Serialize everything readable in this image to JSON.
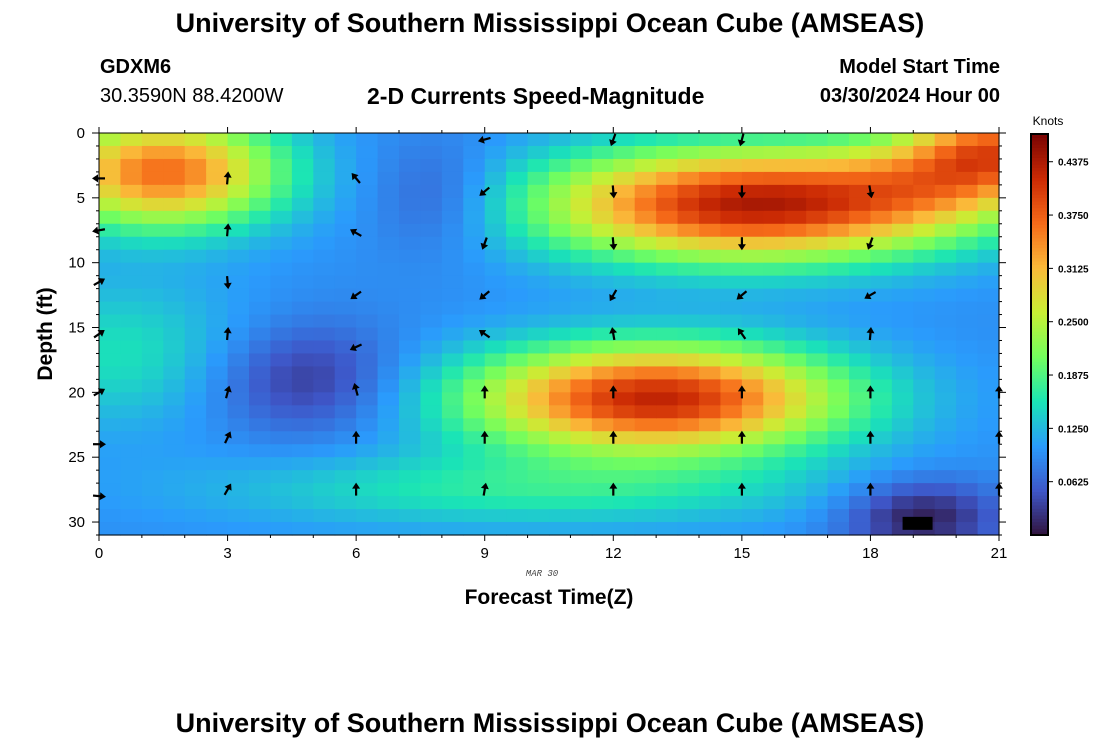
{
  "header": {
    "title": "University of Southern Mississippi Ocean Cube (AMSEAS)",
    "station": "GDXM6",
    "coords": "30.3590N  88.4200W",
    "subtitle": "2-D Currents Speed-Magnitude",
    "start_label": "Model Start Time",
    "start_value": "03/30/2024 Hour 00"
  },
  "footer": {
    "title": "University of Southern Mississippi Ocean Cube (AMSEAS)"
  },
  "chart_data": {
    "type": "heatmap",
    "title": "2-D Currents Speed-Magnitude",
    "xlabel": "Forecast Time(Z)",
    "ylabel": "Depth (ft)",
    "date_label": "MAR 30",
    "xlim": [
      0,
      21
    ],
    "ylim": [
      0,
      31
    ],
    "y_inverted": true,
    "x_ticks": [
      0,
      3,
      6,
      9,
      12,
      15,
      18,
      21
    ],
    "y_ticks": [
      0,
      5,
      10,
      15,
      20,
      25,
      30
    ],
    "colorbar": {
      "label": "Knots",
      "min": 0.0,
      "max": 0.47,
      "ticks": [
        "0.0625",
        "0.1250",
        "0.1875",
        "0.2500",
        "0.3125",
        "0.3750",
        "0.4375"
      ],
      "colors": [
        "#30123b",
        "#3e56c8",
        "#2a9bfc",
        "#1ae4b6",
        "#72fe5e",
        "#c8ef34",
        "#faba39",
        "#f66b19",
        "#cb2a04",
        "#7a0403"
      ]
    },
    "features": [
      {
        "name": "upper-core",
        "t": 15.2,
        "depth": 5.5,
        "sx": 3.4,
        "sy": 3.0,
        "amp": 0.34
      },
      {
        "name": "upper-core-tail",
        "t": 19.5,
        "depth": 3.5,
        "sx": 1.8,
        "sy": 2.6,
        "amp": 0.1
      },
      {
        "name": "surface-left",
        "t": 1.5,
        "depth": 3.0,
        "sx": 1.9,
        "sy": 3.0,
        "amp": 0.27
      },
      {
        "name": "surface-right",
        "t": 21.0,
        "depth": 1.0,
        "sx": 1.4,
        "sy": 2.5,
        "amp": 0.22
      },
      {
        "name": "mid-core",
        "t": 13.0,
        "depth": 20.5,
        "sx": 3.0,
        "sy": 2.9,
        "amp": 0.33
      },
      {
        "name": "left-midband",
        "t": 0.5,
        "depth": 17.0,
        "sx": 2.2,
        "sy": 4.0,
        "amp": 0.06
      },
      {
        "name": "bottom-band",
        "t": 10.0,
        "depth": 27.5,
        "sx": 5.0,
        "sy": 2.0,
        "amp": 0.07
      },
      {
        "name": "slow-zone-a",
        "t": 4.8,
        "depth": 19.0,
        "sx": 1.6,
        "sy": 3.0,
        "amp": -0.07
      },
      {
        "name": "slow-zone-b",
        "t": 8.0,
        "depth": 5.0,
        "sx": 1.2,
        "sy": 3.0,
        "amp": -0.05
      },
      {
        "name": "slow-zone-c",
        "t": 19.2,
        "depth": 29.5,
        "sx": 1.3,
        "sy": 2.0,
        "amp": -0.09
      }
    ],
    "base_speed": 0.095,
    "arrows": [
      {
        "t": 0,
        "depth": 3.5,
        "angle": -90
      },
      {
        "t": 0,
        "depth": 7.5,
        "angle": -100
      },
      {
        "t": 0,
        "depth": 11.5,
        "angle": 60
      },
      {
        "t": 0,
        "depth": 15.5,
        "angle": 55
      },
      {
        "t": 0,
        "depth": 20,
        "angle": 60
      },
      {
        "t": 0,
        "depth": 24,
        "angle": 90
      },
      {
        "t": 0,
        "depth": 28,
        "angle": 95
      },
      {
        "t": 3,
        "depth": 3.5,
        "angle": 5
      },
      {
        "t": 3,
        "depth": 7.5,
        "angle": 5
      },
      {
        "t": 3,
        "depth": 11.5,
        "angle": 175
      },
      {
        "t": 3,
        "depth": 15.5,
        "angle": 5
      },
      {
        "t": 3,
        "depth": 20,
        "angle": 15
      },
      {
        "t": 3,
        "depth": 23.5,
        "angle": 25
      },
      {
        "t": 3,
        "depth": 27.5,
        "angle": 30
      },
      {
        "t": 6,
        "depth": 3.5,
        "angle": -40
      },
      {
        "t": 6,
        "depth": 7.7,
        "angle": -60
      },
      {
        "t": 6,
        "depth": 12.5,
        "angle": -125
      },
      {
        "t": 6,
        "depth": 16.5,
        "angle": -115
      },
      {
        "t": 6,
        "depth": 19.8,
        "angle": -15
      },
      {
        "t": 6,
        "depth": 23.5,
        "angle": 0
      },
      {
        "t": 6,
        "depth": 27.5,
        "angle": 0
      },
      {
        "t": 9,
        "depth": 0.5,
        "angle": -105
      },
      {
        "t": 9,
        "depth": 4.5,
        "angle": -130
      },
      {
        "t": 9,
        "depth": 8.5,
        "angle": -160
      },
      {
        "t": 9,
        "depth": 12.5,
        "angle": -130
      },
      {
        "t": 9,
        "depth": 15.5,
        "angle": -55
      },
      {
        "t": 9,
        "depth": 20,
        "angle": 0
      },
      {
        "t": 9,
        "depth": 23.5,
        "angle": 0
      },
      {
        "t": 9,
        "depth": 27.5,
        "angle": 10
      },
      {
        "t": 12,
        "depth": 0.5,
        "angle": -160
      },
      {
        "t": 12,
        "depth": 4.5,
        "angle": 175
      },
      {
        "t": 12,
        "depth": 8.5,
        "angle": 175
      },
      {
        "t": 12,
        "depth": 12.5,
        "angle": -150
      },
      {
        "t": 12,
        "depth": 15.5,
        "angle": -10
      },
      {
        "t": 12,
        "depth": 20,
        "angle": 0
      },
      {
        "t": 12,
        "depth": 23.5,
        "angle": 0
      },
      {
        "t": 12,
        "depth": 27.5,
        "angle": 0
      },
      {
        "t": 15,
        "depth": 0.5,
        "angle": -165
      },
      {
        "t": 15,
        "depth": 4.5,
        "angle": 180
      },
      {
        "t": 15,
        "depth": 8.5,
        "angle": 180
      },
      {
        "t": 15,
        "depth": 12.5,
        "angle": -130
      },
      {
        "t": 15,
        "depth": 15.5,
        "angle": -35
      },
      {
        "t": 15,
        "depth": 20,
        "angle": 0
      },
      {
        "t": 15,
        "depth": 23.5,
        "angle": 0
      },
      {
        "t": 15,
        "depth": 27.5,
        "angle": 0
      },
      {
        "t": 18,
        "depth": 4.5,
        "angle": 170
      },
      {
        "t": 18,
        "depth": 8.5,
        "angle": -160
      },
      {
        "t": 18,
        "depth": 12.5,
        "angle": -120
      },
      {
        "t": 18,
        "depth": 15.5,
        "angle": 5
      },
      {
        "t": 18,
        "depth": 20,
        "angle": 0
      },
      {
        "t": 18,
        "depth": 23.5,
        "angle": 0
      },
      {
        "t": 18,
        "depth": 27.5,
        "angle": 0
      },
      {
        "t": 21,
        "depth": 20,
        "angle": 0
      },
      {
        "t": 21,
        "depth": 23.5,
        "angle": 0
      },
      {
        "t": 21,
        "depth": 27.5,
        "angle": 0
      }
    ]
  }
}
